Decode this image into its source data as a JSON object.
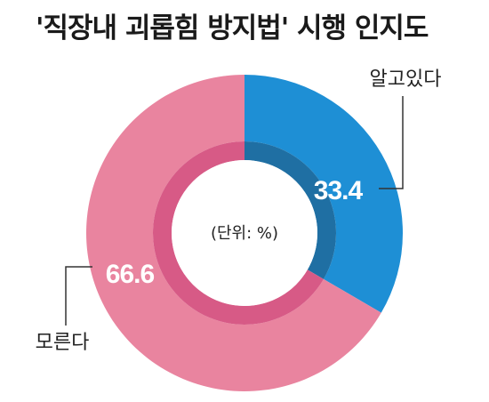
{
  "chart_data": {
    "type": "pie",
    "title": "'직장내 괴롭힘 방지법' 시행 인지도",
    "unit_note": "(단위: %)",
    "slices": [
      {
        "label": "알고있다",
        "value": 33.4,
        "value_label": "33.4",
        "color": "#1e8fd5",
        "inner_color": "#1f6fa3"
      },
      {
        "label": "모른다",
        "value": 66.6,
        "value_label": "66.6",
        "color": "#e9849f",
        "inner_color": "#d75a86"
      }
    ]
  }
}
